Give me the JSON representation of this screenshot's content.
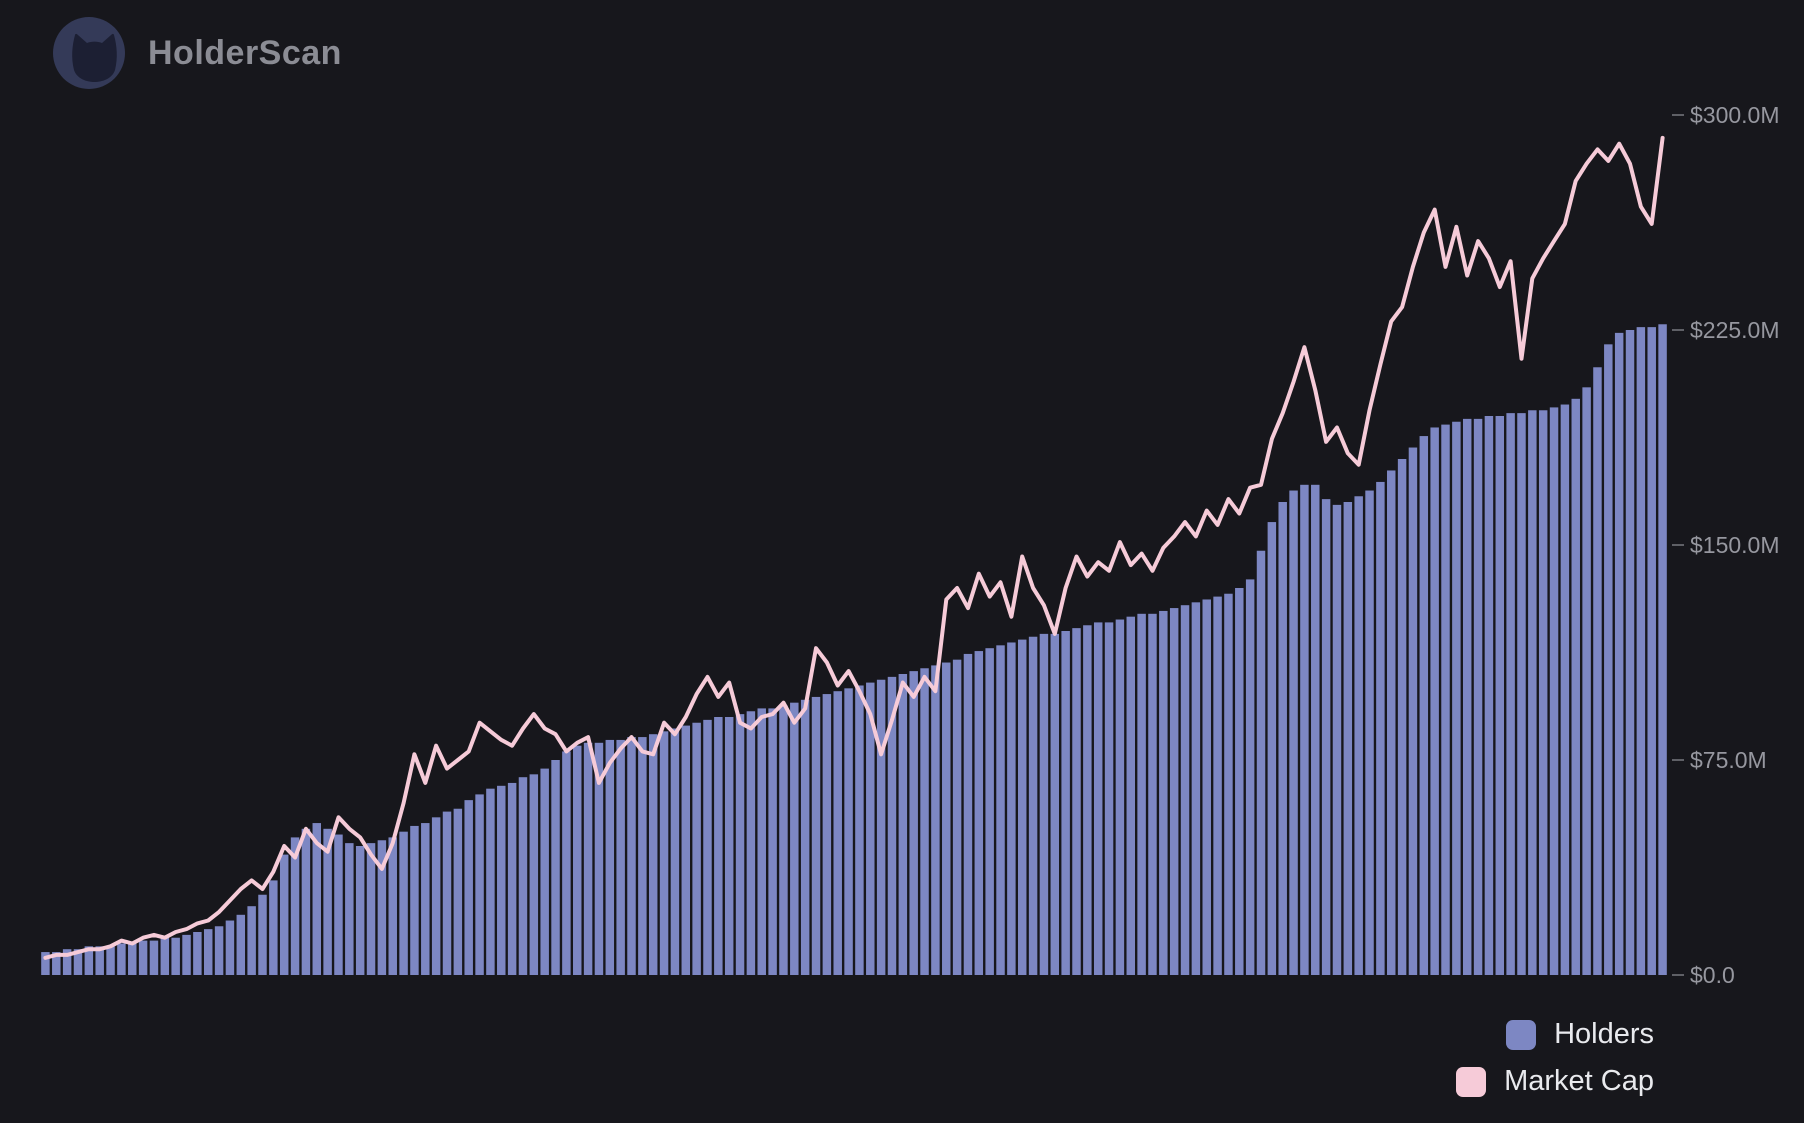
{
  "app": {
    "brand": "HolderScan"
  },
  "colors": {
    "background": "#17171c",
    "bar": "#7d87c3",
    "line": "#f6cbd8",
    "axis_text": "#96979f",
    "axis_tick": "#5f6066",
    "legend_text": "#e9eaee",
    "brand_text": "#8b8c94",
    "logo_circle": "#343a58",
    "logo_cat": "#1c1f33"
  },
  "legend": {
    "position": "bottom-right",
    "items": [
      {
        "label": "Holders",
        "swatch_color": "#7d87c3"
      },
      {
        "label": "Market Cap",
        "swatch_color": "#f6cbd8"
      }
    ]
  },
  "chart_data": {
    "type": "bar",
    "title": "",
    "xlabel": "",
    "ylabel": "",
    "x_axis_visible": false,
    "grid": false,
    "legend_position": "bottom-right",
    "n_points": 150,
    "y_axis": {
      "side": "right",
      "unit": "$M",
      "ylim": [
        0,
        300
      ],
      "ticks": [
        {
          "label": "$300.0M",
          "value": 300
        },
        {
          "label": "$225.0M",
          "value": 225
        },
        {
          "label": "$150.0M",
          "value": 150
        },
        {
          "label": "$75.0M",
          "value": 75
        },
        {
          "label": "$0.0",
          "value": 0
        }
      ]
    },
    "series": [
      {
        "name": "Holders",
        "render_as": "bar",
        "values": [
          8,
          8,
          9,
          9,
          10,
          10,
          10,
          11,
          11,
          12,
          12,
          13,
          13,
          14,
          15,
          16,
          17,
          19,
          21,
          24,
          28,
          33,
          42,
          48,
          51,
          53,
          51,
          49,
          46,
          45,
          46,
          47,
          48,
          50,
          52,
          53,
          55,
          57,
          58,
          61,
          63,
          65,
          66,
          67,
          69,
          70,
          72,
          75,
          78,
          80,
          81,
          81,
          82,
          82,
          83,
          83,
          84,
          85,
          86,
          87,
          88,
          89,
          90,
          90,
          91,
          92,
          93,
          93,
          94,
          95,
          96,
          97,
          98,
          99,
          100,
          101,
          102,
          103,
          104,
          105,
          106,
          107,
          108,
          109,
          110,
          112,
          113,
          114,
          115,
          116,
          117,
          118,
          119,
          119,
          120,
          121,
          122,
          123,
          123,
          124,
          125,
          126,
          126,
          127,
          128,
          129,
          130,
          131,
          132,
          133,
          135,
          138,
          148,
          158,
          165,
          169,
          171,
          171,
          166,
          164,
          165,
          167,
          169,
          172,
          176,
          180,
          184,
          188,
          191,
          192,
          193,
          194,
          194,
          195,
          195,
          196,
          196,
          197,
          197,
          198,
          199,
          201,
          205,
          212,
          220,
          224,
          225,
          226,
          226,
          227
        ]
      },
      {
        "name": "Market Cap",
        "render_as": "line",
        "values": [
          6,
          7,
          7,
          8,
          9,
          9,
          10,
          12,
          11,
          13,
          14,
          13,
          15,
          16,
          18,
          19,
          22,
          26,
          30,
          33,
          30,
          36,
          45,
          41,
          51,
          46,
          43,
          55,
          51,
          48,
          42,
          37,
          46,
          60,
          77,
          67,
          80,
          72,
          75,
          78,
          88,
          85,
          82,
          80,
          86,
          91,
          86,
          84,
          78,
          81,
          83,
          67,
          74,
          79,
          83,
          78,
          77,
          88,
          84,
          90,
          98,
          104,
          97,
          102,
          88,
          86,
          90,
          91,
          95,
          88,
          93,
          114,
          109,
          101,
          106,
          99,
          91,
          77,
          89,
          102,
          97,
          104,
          99,
          131,
          135,
          128,
          140,
          132,
          137,
          125,
          146,
          135,
          129,
          119,
          135,
          146,
          139,
          144,
          141,
          151,
          143,
          147,
          141,
          149,
          153,
          158,
          153,
          162,
          157,
          166,
          161,
          170,
          171,
          187,
          196,
          207,
          219,
          204,
          186,
          191,
          182,
          178,
          197,
          213,
          228,
          233,
          247,
          259,
          267,
          247,
          261,
          244,
          256,
          250,
          240,
          249,
          215,
          243,
          250,
          256,
          262,
          277,
          283,
          288,
          284,
          290,
          283,
          268,
          262,
          292
        ]
      }
    ]
  }
}
